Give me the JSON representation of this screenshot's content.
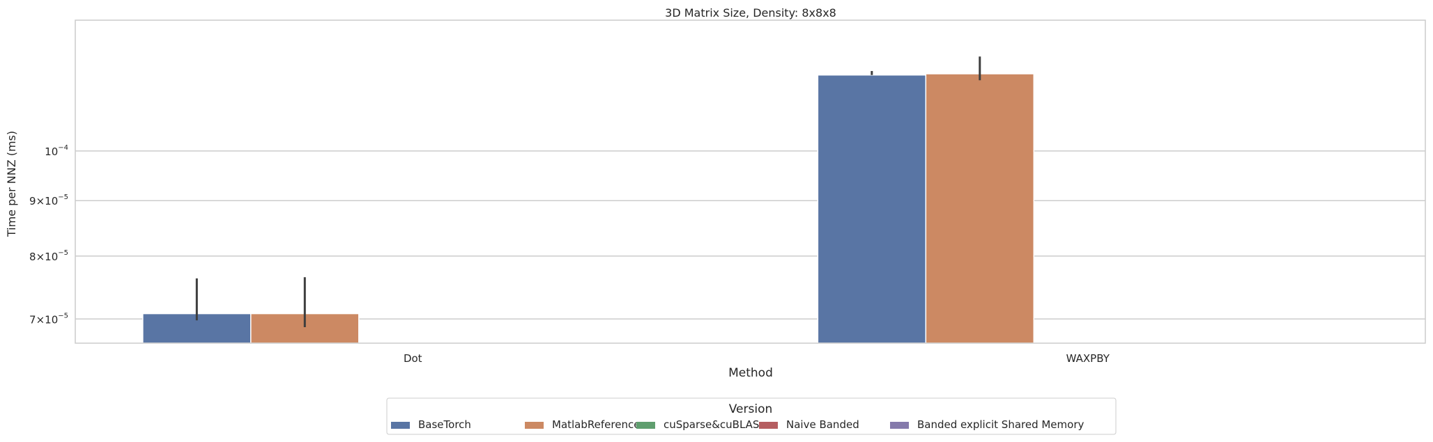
{
  "chart_data": {
    "type": "bar",
    "title": "3D Matrix Size, Density: 8x8x8",
    "xlabel": "Method",
    "ylabel": "Time per NNZ (ms)",
    "yscale": "log",
    "ylim": [
      6.65e-05,
      0.000132
    ],
    "grid": "horizontal",
    "categories": [
      "Dot",
      "WAXPBY"
    ],
    "y_ticks": [
      {
        "value": 7e-05,
        "label_mantissa": "7",
        "label_exp": "−5"
      },
      {
        "value": 8e-05,
        "label_mantissa": "8",
        "label_exp": "−5"
      },
      {
        "value": 9e-05,
        "label_mantissa": "9",
        "label_exp": "−5"
      },
      {
        "value": 0.0001,
        "label_mantissa": "",
        "label_exp": "−4"
      }
    ],
    "legend": {
      "title": "Version",
      "placement": "bottom-center",
      "entries": [
        "BaseTorch",
        "MatlabReference",
        "cuSparse&cuBLAS",
        "Naive Banded",
        "Banded explicit Shared Memory"
      ]
    },
    "series": [
      {
        "name": "BaseTorch",
        "color": "#5975a4",
        "values": [
          7.08e-05,
          0.0001175
        ],
        "err_low": [
          6.98e-05,
          0.0001175
        ],
        "err_high": [
          7.63e-05,
          0.0001185
        ]
      },
      {
        "name": "MatlabReference",
        "color": "#cc8963",
        "values": [
          7.08e-05,
          0.0001178
        ],
        "err_low": [
          6.88e-05,
          0.0001162
        ],
        "err_high": [
          7.65e-05,
          0.0001222
        ]
      },
      {
        "name": "cuSparse&cuBLAS",
        "color": "#5f9e6e",
        "values": [
          null,
          null
        ]
      },
      {
        "name": "Naive Banded",
        "color": "#b55d60",
        "values": [
          null,
          null
        ]
      },
      {
        "name": "Banded explicit Shared Memory",
        "color": "#857aab",
        "values": [
          null,
          null
        ]
      }
    ]
  }
}
